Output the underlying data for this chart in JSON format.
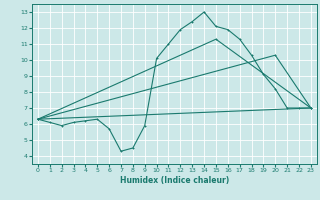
{
  "title": "",
  "xlabel": "Humidex (Indice chaleur)",
  "xlim": [
    -0.5,
    23.5
  ],
  "ylim": [
    3.5,
    13.5
  ],
  "xticks": [
    0,
    1,
    2,
    3,
    4,
    5,
    6,
    7,
    8,
    9,
    10,
    11,
    12,
    13,
    14,
    15,
    16,
    17,
    18,
    19,
    20,
    21,
    22,
    23
  ],
  "yticks": [
    4,
    5,
    6,
    7,
    8,
    9,
    10,
    11,
    12,
    13
  ],
  "bg_color": "#cce8e8",
  "line_color": "#1a7a6e",
  "grid_color": "#ffffff",
  "line1_x": [
    0,
    1,
    2,
    3,
    4,
    5,
    6,
    7,
    8,
    9,
    10,
    11,
    12,
    13,
    14,
    15,
    16,
    17,
    18,
    19,
    20,
    21,
    22,
    23
  ],
  "line1_y": [
    6.3,
    6.1,
    5.9,
    6.1,
    6.2,
    6.3,
    5.7,
    4.3,
    4.5,
    5.9,
    10.1,
    11.0,
    11.9,
    12.4,
    13.0,
    12.1,
    11.9,
    11.3,
    10.3,
    9.1,
    8.2,
    7.0,
    7.0,
    7.0
  ],
  "line2_x": [
    0,
    15,
    23
  ],
  "line2_y": [
    6.3,
    11.3,
    7.0
  ],
  "line3_x": [
    0,
    20,
    23
  ],
  "line3_y": [
    6.3,
    10.3,
    7.0
  ],
  "line4_x": [
    0,
    23
  ],
  "line4_y": [
    6.3,
    7.0
  ]
}
